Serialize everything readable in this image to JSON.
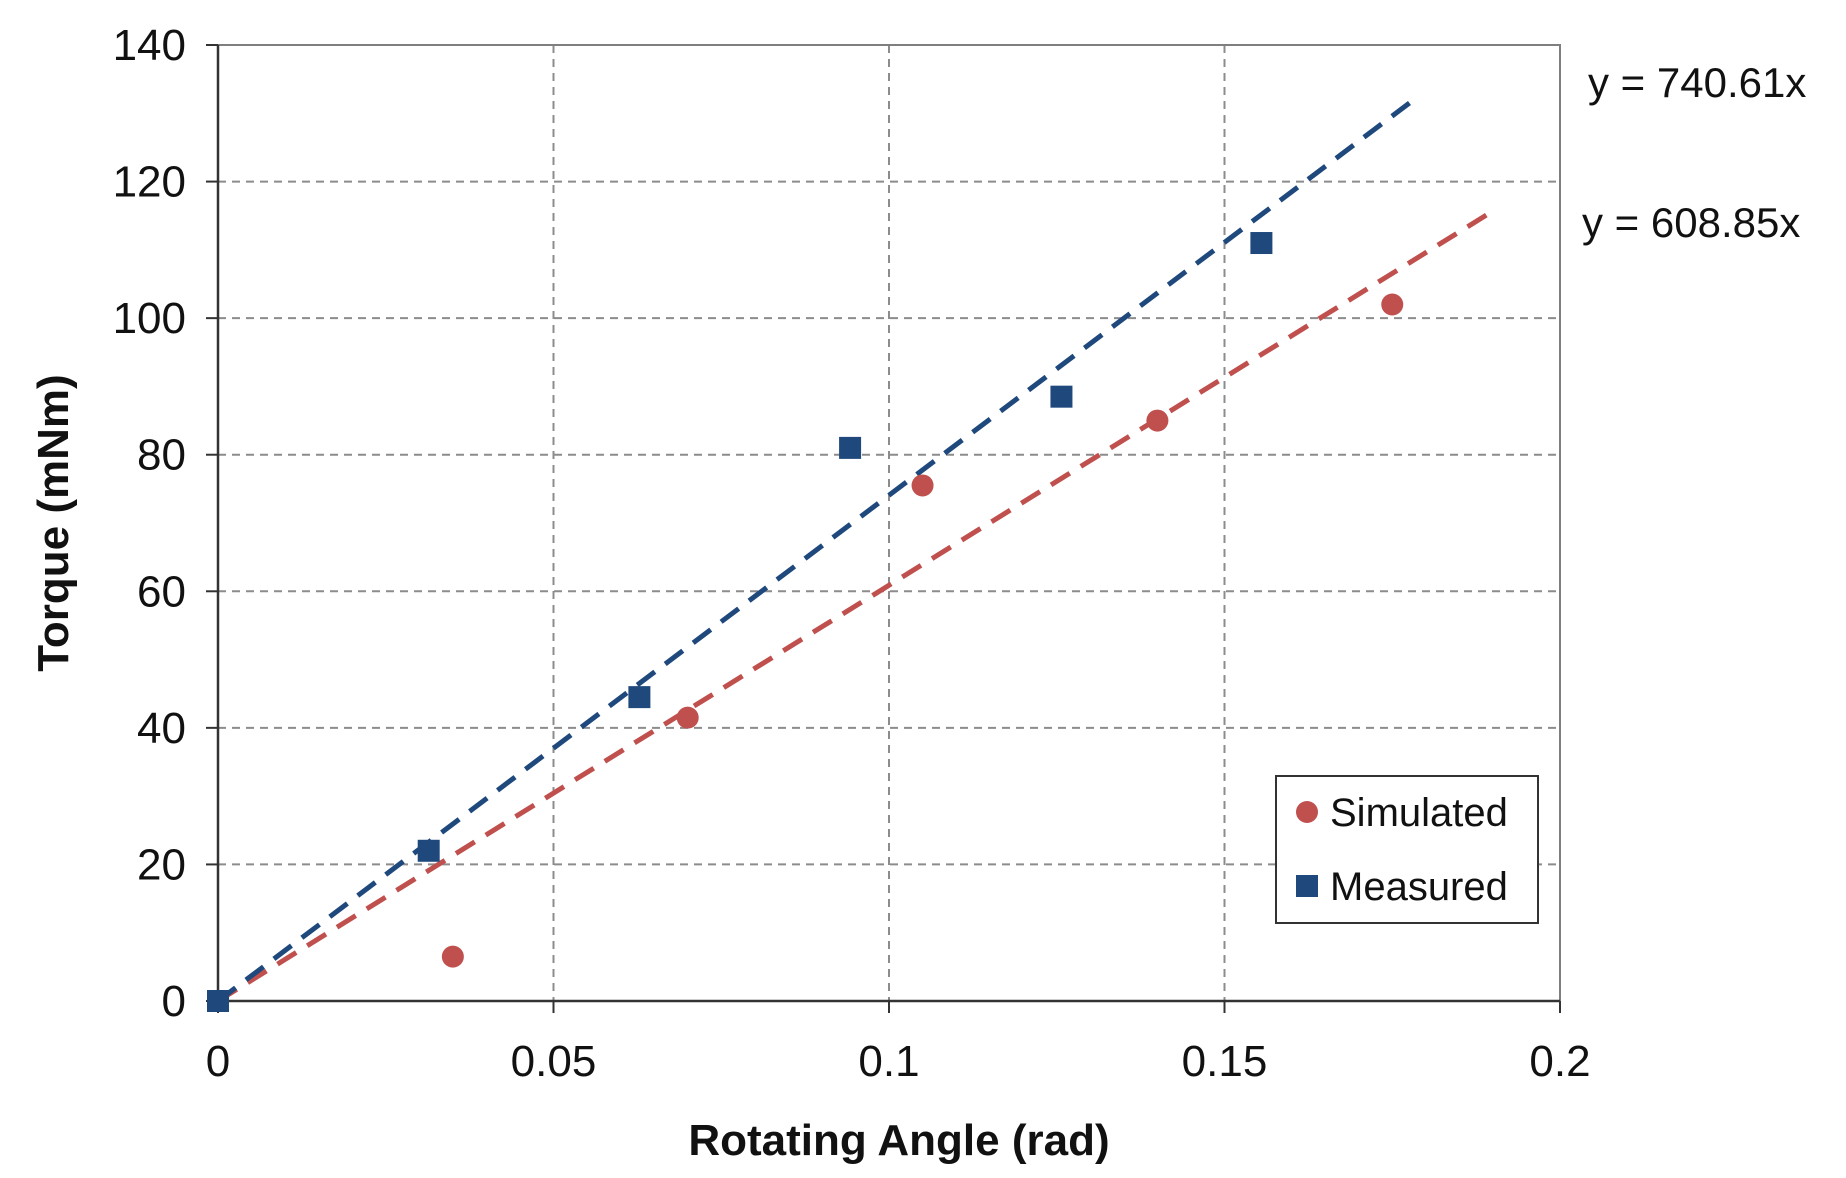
{
  "chart_data": {
    "type": "scatter",
    "title": "",
    "xlabel": "Rotating Angle (rad)",
    "ylabel": "Torque (mNm)",
    "xlim": [
      0,
      0.2
    ],
    "ylim": [
      0,
      140
    ],
    "x_ticks": [
      0,
      0.05,
      0.1,
      0.15,
      0.2
    ],
    "x_tick_labels": [
      "0",
      "0.05",
      "0.1",
      "0.15",
      "0.2"
    ],
    "y_ticks": [
      0,
      20,
      40,
      60,
      80,
      100,
      120,
      140
    ],
    "y_tick_labels": [
      "0",
      "20",
      "40",
      "60",
      "80",
      "100",
      "120",
      "140"
    ],
    "grid": true,
    "legend_position": "bottom-right",
    "series": [
      {
        "name": "Simulated",
        "marker": "circle",
        "color": "#C0504D",
        "x": [
          0,
          0.035,
          0.07,
          0.105,
          0.14,
          0.175
        ],
        "y": [
          0,
          6.5,
          41.5,
          75.5,
          85,
          102
        ],
        "trendline": {
          "slope": 608.85,
          "x_end": 0.19,
          "label": "y = 608.85x"
        }
      },
      {
        "name": "Measured",
        "marker": "square",
        "color": "#1F497D",
        "x": [
          0,
          0.0314,
          0.0628,
          0.0942,
          0.1257,
          0.1555
        ],
        "y": [
          0,
          22,
          44.5,
          81,
          88.5,
          111
        ],
        "trendline": {
          "slope": 740.61,
          "x_end": 0.179,
          "label": "y = 740.61x"
        }
      }
    ]
  }
}
